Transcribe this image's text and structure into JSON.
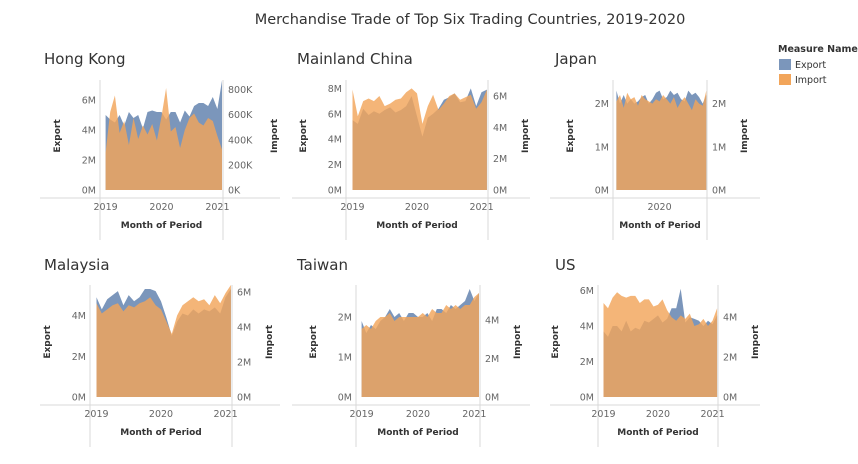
{
  "title": "Merchandise Trade of Top Six Trading Countries, 2019-2020",
  "legend": {
    "title": "Measure Names",
    "items": [
      {
        "label": "Export",
        "color": "#7b96bb"
      },
      {
        "label": "Import",
        "color": "#f2a55a"
      }
    ]
  },
  "chart_data": [
    {
      "type": "area",
      "title": "Hong Kong",
      "xlabel": "Month of Period",
      "ylabel_left": "Export",
      "ylabel_right": "Import",
      "x_ticks": [
        "2019",
        "2020",
        "2021"
      ],
      "y_left_ticks": [
        "0M",
        "2M",
        "4M",
        "6M"
      ],
      "y_right_ticks": [
        "0K",
        "200K",
        "400K",
        "600K",
        "800K"
      ],
      "y_left_range": [
        0,
        7200000
      ],
      "y_right_range": [
        0,
        860000
      ],
      "x_range": [
        2018.9,
        2021.1
      ],
      "x": [
        2019.0,
        2019.083,
        2019.167,
        2019.25,
        2019.333,
        2019.417,
        2019.5,
        2019.583,
        2019.667,
        2019.75,
        2019.833,
        2019.917,
        2020.0,
        2020.083,
        2020.167,
        2020.25,
        2020.333,
        2020.417,
        2020.5,
        2020.583,
        2020.667,
        2020.75,
        2020.833,
        2020.917,
        2021.0,
        2021.083
      ],
      "series": [
        {
          "name": "Export",
          "axis": "left",
          "values": [
            5000000,
            4700000,
            4500000,
            5000000,
            4300000,
            5200000,
            4800000,
            5000000,
            4100000,
            5200000,
            5300000,
            5200000,
            5200000,
            4700000,
            5200000,
            5200000,
            4500000,
            5300000,
            4900000,
            5600000,
            5800000,
            5800000,
            5600000,
            6200000,
            5400000,
            7300000
          ]
        },
        {
          "name": "Import",
          "axis": "left",
          "values": [
            2500000,
            5200000,
            6300000,
            3800000,
            4600000,
            3000000,
            4800000,
            3400000,
            4300000,
            3700000,
            4400000,
            3300000,
            4900000,
            6800000,
            3900000,
            4200000,
            2800000,
            4000000,
            4800000,
            5100000,
            4500000,
            4300000,
            4800000,
            4600000,
            3600000,
            2700000
          ]
        }
      ]
    },
    {
      "type": "area",
      "title": "Mainland China",
      "xlabel": "Month of Period",
      "ylabel_left": "Export",
      "ylabel_right": "Import",
      "x_ticks": [
        "2019",
        "2020",
        "2021"
      ],
      "y_left_ticks": [
        "0M",
        "2M",
        "4M",
        "6M",
        "8M"
      ],
      "y_right_ticks": [
        "0M",
        "2M",
        "4M",
        "6M"
      ],
      "y_left_range": [
        0,
        8500000
      ],
      "y_right_range": [
        0,
        6900000
      ],
      "x_range": [
        2018.9,
        2021.1
      ],
      "x": [
        2019.0,
        2019.083,
        2019.167,
        2019.25,
        2019.333,
        2019.417,
        2019.5,
        2019.583,
        2019.667,
        2019.75,
        2019.833,
        2019.917,
        2020.0,
        2020.083,
        2020.167,
        2020.25,
        2020.333,
        2020.417,
        2020.5,
        2020.583,
        2020.667,
        2020.75,
        2020.833,
        2020.917,
        2021.0,
        2021.083
      ],
      "series": [
        {
          "name": "Export",
          "axis": "left",
          "values": [
            5500000,
            5200000,
            6400000,
            5900000,
            6200000,
            6000000,
            6300000,
            6500000,
            6100000,
            6300000,
            6600000,
            7400000,
            5800000,
            4200000,
            5700000,
            6000000,
            6400000,
            7100000,
            7300000,
            7600000,
            6900000,
            7000000,
            8000000,
            6600000,
            7700000,
            7900000
          ]
        },
        {
          "name": "Import",
          "axis": "left",
          "values": [
            7900000,
            5800000,
            7000000,
            7200000,
            7000000,
            7400000,
            6600000,
            6800000,
            7100000,
            7200000,
            7700000,
            8000000,
            7600000,
            5200000,
            6600000,
            7500000,
            6300000,
            6800000,
            7400000,
            7600000,
            7100000,
            7300000,
            7500000,
            6400000,
            6900000,
            7900000
          ]
        }
      ]
    },
    {
      "type": "area",
      "title": "Japan",
      "xlabel": "Month of Period",
      "ylabel_left": "Export",
      "ylabel_right": "Import",
      "x_ticks": [
        "2020"
      ],
      "y_left_ticks": [
        "0M",
        "1M",
        "2M"
      ],
      "y_right_ticks": [
        "0M",
        "1M",
        "2M"
      ],
      "y_left_range": [
        0,
        2500000
      ],
      "y_right_range": [
        0,
        2500000
      ],
      "x_range": [
        2018.92,
        2021.1
      ],
      "x": [
        2019.0,
        2019.083,
        2019.167,
        2019.25,
        2019.333,
        2019.417,
        2019.5,
        2019.583,
        2019.667,
        2019.75,
        2019.833,
        2019.917,
        2020.0,
        2020.083,
        2020.167,
        2020.25,
        2020.333,
        2020.417,
        2020.5,
        2020.583,
        2020.667,
        2020.75,
        2020.833,
        2020.917,
        2021.0,
        2021.083
      ],
      "series": [
        {
          "name": "Export",
          "axis": "left",
          "values": [
            2300000,
            2000000,
            2200000,
            2000000,
            2100000,
            2000000,
            2050000,
            2150000,
            2200000,
            2000000,
            2100000,
            2250000,
            2300000,
            2100000,
            2150000,
            2300000,
            2200000,
            2250000,
            2100000,
            2050000,
            2300000,
            2200000,
            2250000,
            2150000,
            2000000,
            2200000
          ]
        },
        {
          "name": "Import",
          "axis": "left",
          "values": [
            2050000,
            2200000,
            1900000,
            2250000,
            2100000,
            2150000,
            1950000,
            2200000,
            2100000,
            2050000,
            2000000,
            2100000,
            2050000,
            2200000,
            2100000,
            2000000,
            2150000,
            1900000,
            2050000,
            2150000,
            2000000,
            1850000,
            2100000,
            2000000,
            1950000,
            2300000
          ]
        }
      ]
    },
    {
      "type": "area",
      "title": "Malaysia",
      "xlabel": "Month of Period",
      "ylabel_left": "Export",
      "ylabel_right": "Import",
      "x_ticks": [
        "2019",
        "2020",
        "2021"
      ],
      "y_left_ticks": [
        "0M",
        "2M",
        "4M"
      ],
      "y_right_ticks": [
        "0M",
        "2M",
        "4M",
        "6M"
      ],
      "y_left_range": [
        0,
        5400000
      ],
      "y_right_range": [
        0,
        6300000
      ],
      "x_range": [
        2018.9,
        2021.1
      ],
      "x": [
        2019.0,
        2019.083,
        2019.167,
        2019.25,
        2019.333,
        2019.417,
        2019.5,
        2019.583,
        2019.667,
        2019.75,
        2019.833,
        2019.917,
        2020.0,
        2020.083,
        2020.167,
        2020.25,
        2020.333,
        2020.417,
        2020.5,
        2020.583,
        2020.667,
        2020.75,
        2020.833,
        2020.917,
        2021.0,
        2021.083
      ],
      "series": [
        {
          "name": "Export",
          "axis": "left",
          "values": [
            4900000,
            4300000,
            4800000,
            5000000,
            5200000,
            4500000,
            5000000,
            4700000,
            4900000,
            5300000,
            5300000,
            5200000,
            4700000,
            3900000,
            3000000,
            3700000,
            4100000,
            4000000,
            4300000,
            4100000,
            4300000,
            4200000,
            4400000,
            4100000,
            4900000,
            5300000
          ]
        },
        {
          "name": "Import",
          "axis": "left",
          "values": [
            4600000,
            4100000,
            4300000,
            4500000,
            4600000,
            4200000,
            4500000,
            4400000,
            4600000,
            4700000,
            4900000,
            4500000,
            4300000,
            3700000,
            3100000,
            4000000,
            4500000,
            4700000,
            4900000,
            4700000,
            4800000,
            4500000,
            5000000,
            4600000,
            5100000,
            5500000
          ]
        }
      ]
    },
    {
      "type": "area",
      "title": "Taiwan",
      "xlabel": "Month of Period",
      "ylabel_left": "Export",
      "ylabel_right": "Import",
      "x_ticks": [
        "2019",
        "2020",
        "2021"
      ],
      "y_left_ticks": [
        "0M",
        "1M",
        "2M"
      ],
      "y_right_ticks": [
        "0M",
        "2M",
        "4M"
      ],
      "y_left_range": [
        0,
        2750000
      ],
      "y_right_range": [
        0,
        5700000
      ],
      "x_range": [
        2018.9,
        2021.1
      ],
      "x": [
        2019.0,
        2019.083,
        2019.167,
        2019.25,
        2019.333,
        2019.417,
        2019.5,
        2019.583,
        2019.667,
        2019.75,
        2019.833,
        2019.917,
        2020.0,
        2020.083,
        2020.167,
        2020.25,
        2020.333,
        2020.417,
        2020.5,
        2020.583,
        2020.667,
        2020.75,
        2020.833,
        2020.917,
        2021.0,
        2021.083
      ],
      "series": [
        {
          "name": "Export",
          "axis": "left",
          "values": [
            1900000,
            1600000,
            1800000,
            1700000,
            1900000,
            2000000,
            2200000,
            2000000,
            2100000,
            1900000,
            2100000,
            2100000,
            2000000,
            2000000,
            2100000,
            1900000,
            2200000,
            2200000,
            2100000,
            2300000,
            2200000,
            2300000,
            2400000,
            2700000,
            2400000,
            2600000
          ]
        },
        {
          "name": "Import",
          "axis": "left",
          "values": [
            1700000,
            1800000,
            1700000,
            1900000,
            2000000,
            2000000,
            2100000,
            1900000,
            2000000,
            2000000,
            2000000,
            2000000,
            2000000,
            2100000,
            2000000,
            2200000,
            2100000,
            2100000,
            2300000,
            2200000,
            2300000,
            2200000,
            2300000,
            2300000,
            2500000,
            2600000
          ]
        }
      ]
    },
    {
      "type": "area",
      "title": "US",
      "xlabel": "Month of Period",
      "ylabel_left": "Export",
      "ylabel_right": "Import",
      "x_ticks": [
        "2019",
        "2020",
        "2021"
      ],
      "y_left_ticks": [
        "0M",
        "2M",
        "4M",
        "6M"
      ],
      "y_right_ticks": [
        "0M",
        "2M",
        "4M"
      ],
      "y_left_range": [
        0,
        6200000
      ],
      "y_right_range": [
        0,
        5500000
      ],
      "x_range": [
        2018.9,
        2021.1
      ],
      "x": [
        2019.0,
        2019.083,
        2019.167,
        2019.25,
        2019.333,
        2019.417,
        2019.5,
        2019.583,
        2019.667,
        2019.75,
        2019.833,
        2019.917,
        2020.0,
        2020.083,
        2020.167,
        2020.25,
        2020.333,
        2020.417,
        2020.5,
        2020.583,
        2020.667,
        2020.75,
        2020.833,
        2020.917,
        2021.0,
        2021.083
      ],
      "series": [
        {
          "name": "Export",
          "axis": "left",
          "values": [
            3700000,
            3400000,
            4000000,
            4000000,
            3700000,
            4300000,
            3700000,
            3900000,
            3800000,
            4300000,
            4200000,
            4400000,
            4600000,
            4200000,
            4400000,
            5000000,
            5000000,
            6100000,
            4200000,
            4500000,
            4400000,
            4300000,
            4000000,
            4300000,
            4100000,
            4600000
          ]
        },
        {
          "name": "Import",
          "axis": "left",
          "values": [
            5300000,
            5000000,
            5600000,
            5900000,
            5700000,
            5600000,
            5700000,
            5700000,
            5300000,
            5500000,
            5500000,
            5100000,
            5200000,
            5500000,
            4900000,
            4500000,
            4300000,
            4600000,
            4400000,
            4700000,
            4000000,
            4100000,
            4400000,
            4000000,
            4300000,
            5000000
          ]
        }
      ]
    }
  ]
}
